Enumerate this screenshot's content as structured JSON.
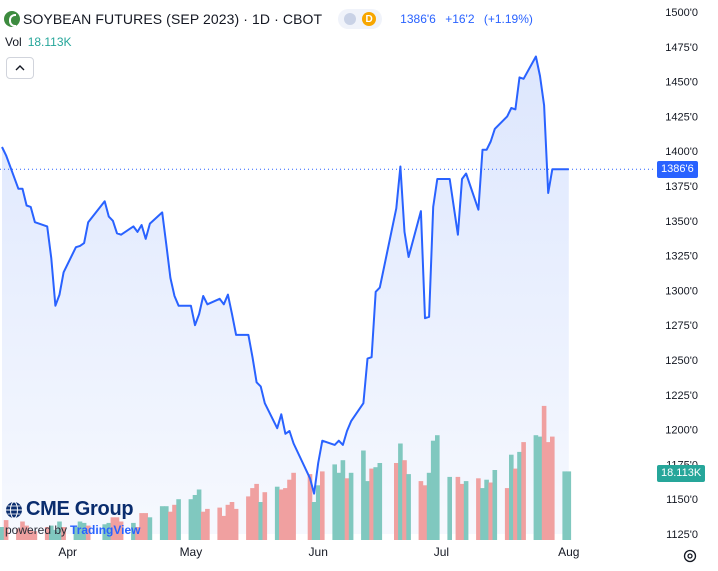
{
  "header": {
    "title": "SOYBEAN FUTURES (SEP 2023) · 1D · CBOT",
    "badge_d": "D",
    "quote_price": "1386'6",
    "quote_change": "+16'2",
    "quote_pct": "(+1.19%)"
  },
  "volume": {
    "label": "Vol",
    "value": "18.113K"
  },
  "price_tag": "1386'6",
  "volume_tag": "18.113K",
  "branding": {
    "logo_text": "CME Group",
    "powered_by": "powered by",
    "platform": "TradingView"
  },
  "icons": {
    "collapse": "chevron-up-icon",
    "settings": "gear-icon",
    "symbol": "cbot-logo-icon",
    "cme": "cme-globe-icon"
  },
  "colors": {
    "line": "#2962ff",
    "area": "#dbe5fd",
    "volume_up": "#80c8bf",
    "volume_down": "#f0a0a0",
    "accent": "#2962ff"
  },
  "chart_data": {
    "type": "area",
    "title": "SOYBEAN FUTURES (SEP 2023) · 1D · CBOT",
    "xlabel": "",
    "ylabel": "",
    "x_ticks": [
      "Apr",
      "May",
      "Jun",
      "Jul",
      "Aug"
    ],
    "y_ticks": [
      "1500'0",
      "1475'0",
      "1450'0",
      "1425'0",
      "1400'0",
      "1375'0",
      "1350'0",
      "1325'0",
      "1300'0",
      "1275'0",
      "1250'0",
      "1225'0",
      "1200'0",
      "1175'0",
      "1150'0",
      "1125'0"
    ],
    "ylim": [
      1125,
      1500
    ],
    "x": [
      "2023-03-16",
      "2023-03-17",
      "2023-03-20",
      "2023-03-21",
      "2023-03-22",
      "2023-03-23",
      "2023-03-24",
      "2023-03-27",
      "2023-03-28",
      "2023-03-29",
      "2023-03-30",
      "2023-03-31",
      "2023-04-03",
      "2023-04-04",
      "2023-04-05",
      "2023-04-06",
      "2023-04-10",
      "2023-04-11",
      "2023-04-12",
      "2023-04-13",
      "2023-04-14",
      "2023-04-17",
      "2023-04-18",
      "2023-04-19",
      "2023-04-20",
      "2023-04-21",
      "2023-04-24",
      "2023-04-25",
      "2023-04-26",
      "2023-04-27",
      "2023-04-28",
      "2023-05-01",
      "2023-05-02",
      "2023-05-03",
      "2023-05-04",
      "2023-05-05",
      "2023-05-08",
      "2023-05-09",
      "2023-05-10",
      "2023-05-11",
      "2023-05-12",
      "2023-05-15",
      "2023-05-16",
      "2023-05-17",
      "2023-05-18",
      "2023-05-19",
      "2023-05-22",
      "2023-05-23",
      "2023-05-24",
      "2023-05-25",
      "2023-05-26",
      "2023-05-30",
      "2023-05-31",
      "2023-06-01",
      "2023-06-02",
      "2023-06-05",
      "2023-06-06",
      "2023-06-07",
      "2023-06-08",
      "2023-06-09",
      "2023-06-12",
      "2023-06-13",
      "2023-06-14",
      "2023-06-15",
      "2023-06-16",
      "2023-06-20",
      "2023-06-21",
      "2023-06-22",
      "2023-06-23",
      "2023-06-26",
      "2023-06-27",
      "2023-06-28",
      "2023-06-29",
      "2023-06-30",
      "2023-07-03",
      "2023-07-05",
      "2023-07-06",
      "2023-07-07",
      "2023-07-10",
      "2023-07-11",
      "2023-07-12",
      "2023-07-13",
      "2023-07-14",
      "2023-07-17",
      "2023-07-18",
      "2023-07-19",
      "2023-07-20",
      "2023-07-21",
      "2023-07-24",
      "2023-07-25",
      "2023-07-26",
      "2023-07-27",
      "2023-07-28",
      "2023-07-31",
      "2023-08-01"
    ],
    "series": [
      {
        "values": [
          1403,
          1397,
          1373,
          1373,
          1361,
          1360,
          1349,
          1346,
          1323,
          1289,
          1297,
          1313,
          1331,
          1332,
          1334,
          1349,
          1364,
          1353,
          1350,
          1341,
          1340,
          1346,
          1342,
          1347,
          1337,
          1348,
          1356,
          1333,
          1309,
          1296,
          1289,
          1289,
          1275,
          1283,
          1296,
          1290,
          1294,
          1290,
          1297,
          1283,
          1268,
          1268,
          1252,
          1234,
          1231,
          1219,
          1201,
          1211,
          1197,
          1199,
          1190,
          1165,
          1154,
          1176,
          1192,
          1189,
          1192,
          1189,
          1199,
          1206,
          1219,
          1251,
          1252,
          1299,
          1302,
          1359,
          1389,
          1342,
          1324,
          1357,
          1280,
          1281,
          1360,
          1380,
          1380,
          1340,
          1380,
          1384,
          1358,
          1401,
          1401,
          1407,
          1416,
          1425,
          1431,
          1430,
          1453,
          1452,
          1468,
          1454,
          1433,
          1370,
          1387,
          1387,
          1387
        ]
      }
    ],
    "volume": [
      {
        "v": 1130,
        "up": true
      },
      {
        "v": 1135,
        "up": false
      },
      {
        "v": 1129,
        "up": false
      },
      {
        "v": 1134,
        "up": false
      },
      {
        "v": 1131,
        "up": false
      },
      {
        "v": 1128,
        "up": false
      },
      {
        "v": 1127,
        "up": false
      },
      {
        "v": 1130,
        "up": false
      },
      {
        "v": 1131,
        "up": true
      },
      {
        "v": 1128,
        "up": true
      },
      {
        "v": 1134,
        "up": true
      },
      {
        "v": 1130,
        "up": false
      },
      {
        "v": 1130,
        "up": true
      },
      {
        "v": 1134,
        "up": true
      },
      {
        "v": 1133,
        "up": true
      },
      {
        "v": 1131,
        "up": false
      },
      {
        "v": 1132,
        "up": true
      },
      {
        "v": 1133,
        "up": true
      },
      {
        "v": 1137,
        "up": false
      },
      {
        "v": 1137,
        "up": false
      },
      {
        "v": 1134,
        "up": false
      },
      {
        "v": 1133,
        "up": true
      },
      {
        "v": 1130,
        "up": false
      },
      {
        "v": 1140,
        "up": false
      },
      {
        "v": 1140,
        "up": false
      },
      {
        "v": 1137,
        "up": true
      },
      {
        "v": 1145,
        "up": true
      },
      {
        "v": 1145,
        "up": true
      },
      {
        "v": 1141,
        "up": false
      },
      {
        "v": 1146,
        "up": false
      },
      {
        "v": 1150,
        "up": true
      },
      {
        "v": 1150,
        "up": true
      },
      {
        "v": 1153,
        "up": true
      },
      {
        "v": 1157,
        "up": true
      },
      {
        "v": 1141,
        "up": false
      },
      {
        "v": 1143,
        "up": false
      },
      {
        "v": 1144,
        "up": false
      },
      {
        "v": 1138,
        "up": false
      },
      {
        "v": 1146,
        "up": false
      },
      {
        "v": 1148,
        "up": false
      },
      {
        "v": 1143,
        "up": false
      },
      {
        "v": 1152,
        "up": false
      },
      {
        "v": 1158,
        "up": false
      },
      {
        "v": 1161,
        "up": false
      },
      {
        "v": 1148,
        "up": true
      },
      {
        "v": 1155,
        "up": false
      },
      {
        "v": 1159,
        "up": true
      },
      {
        "v": 1157,
        "up": false
      },
      {
        "v": 1158,
        "up": false
      },
      {
        "v": 1164,
        "up": false
      },
      {
        "v": 1169,
        "up": false
      },
      {
        "v": 1168,
        "up": false
      },
      {
        "v": 1148,
        "up": true
      },
      {
        "v": 1160,
        "up": true
      },
      {
        "v": 1170,
        "up": false
      },
      {
        "v": 1175,
        "up": true
      },
      {
        "v": 1169,
        "up": true
      },
      {
        "v": 1178,
        "up": true
      },
      {
        "v": 1165,
        "up": false
      },
      {
        "v": 1169,
        "up": true
      },
      {
        "v": 1185,
        "up": true
      },
      {
        "v": 1163,
        "up": true
      },
      {
        "v": 1172,
        "up": false
      },
      {
        "v": 1173,
        "up": true
      },
      {
        "v": 1176,
        "up": true
      },
      {
        "v": 1176,
        "up": false
      },
      {
        "v": 1190,
        "up": true
      },
      {
        "v": 1178,
        "up": false
      },
      {
        "v": 1168,
        "up": true
      },
      {
        "v": 1163,
        "up": false
      },
      {
        "v": 1160,
        "up": false
      },
      {
        "v": 1169,
        "up": true
      },
      {
        "v": 1192,
        "up": true
      },
      {
        "v": 1196,
        "up": true
      },
      {
        "v": 1166,
        "up": true
      },
      {
        "v": 1166,
        "up": false
      },
      {
        "v": 1161,
        "up": false
      },
      {
        "v": 1163,
        "up": true
      },
      {
        "v": 1165,
        "up": false
      },
      {
        "v": 1158,
        "up": true
      },
      {
        "v": 1164,
        "up": true
      },
      {
        "v": 1162,
        "up": false
      },
      {
        "v": 1171,
        "up": true
      },
      {
        "v": 1158,
        "up": false
      },
      {
        "v": 1182,
        "up": true
      },
      {
        "v": 1172,
        "up": false
      },
      {
        "v": 1184,
        "up": true
      },
      {
        "v": 1191,
        "up": false
      },
      {
        "v": 1196,
        "up": true
      },
      {
        "v": 1195,
        "up": true
      },
      {
        "v": 1217,
        "up": false
      },
      {
        "v": 1191,
        "up": false
      },
      {
        "v": 1195,
        "up": false
      },
      {
        "v": 1170,
        "up": true
      },
      {
        "v": 1170,
        "up": true
      }
    ],
    "last_price": "1386'6",
    "last_volume": "18.113K",
    "grid": false,
    "volume_unit": "price-scale"
  }
}
